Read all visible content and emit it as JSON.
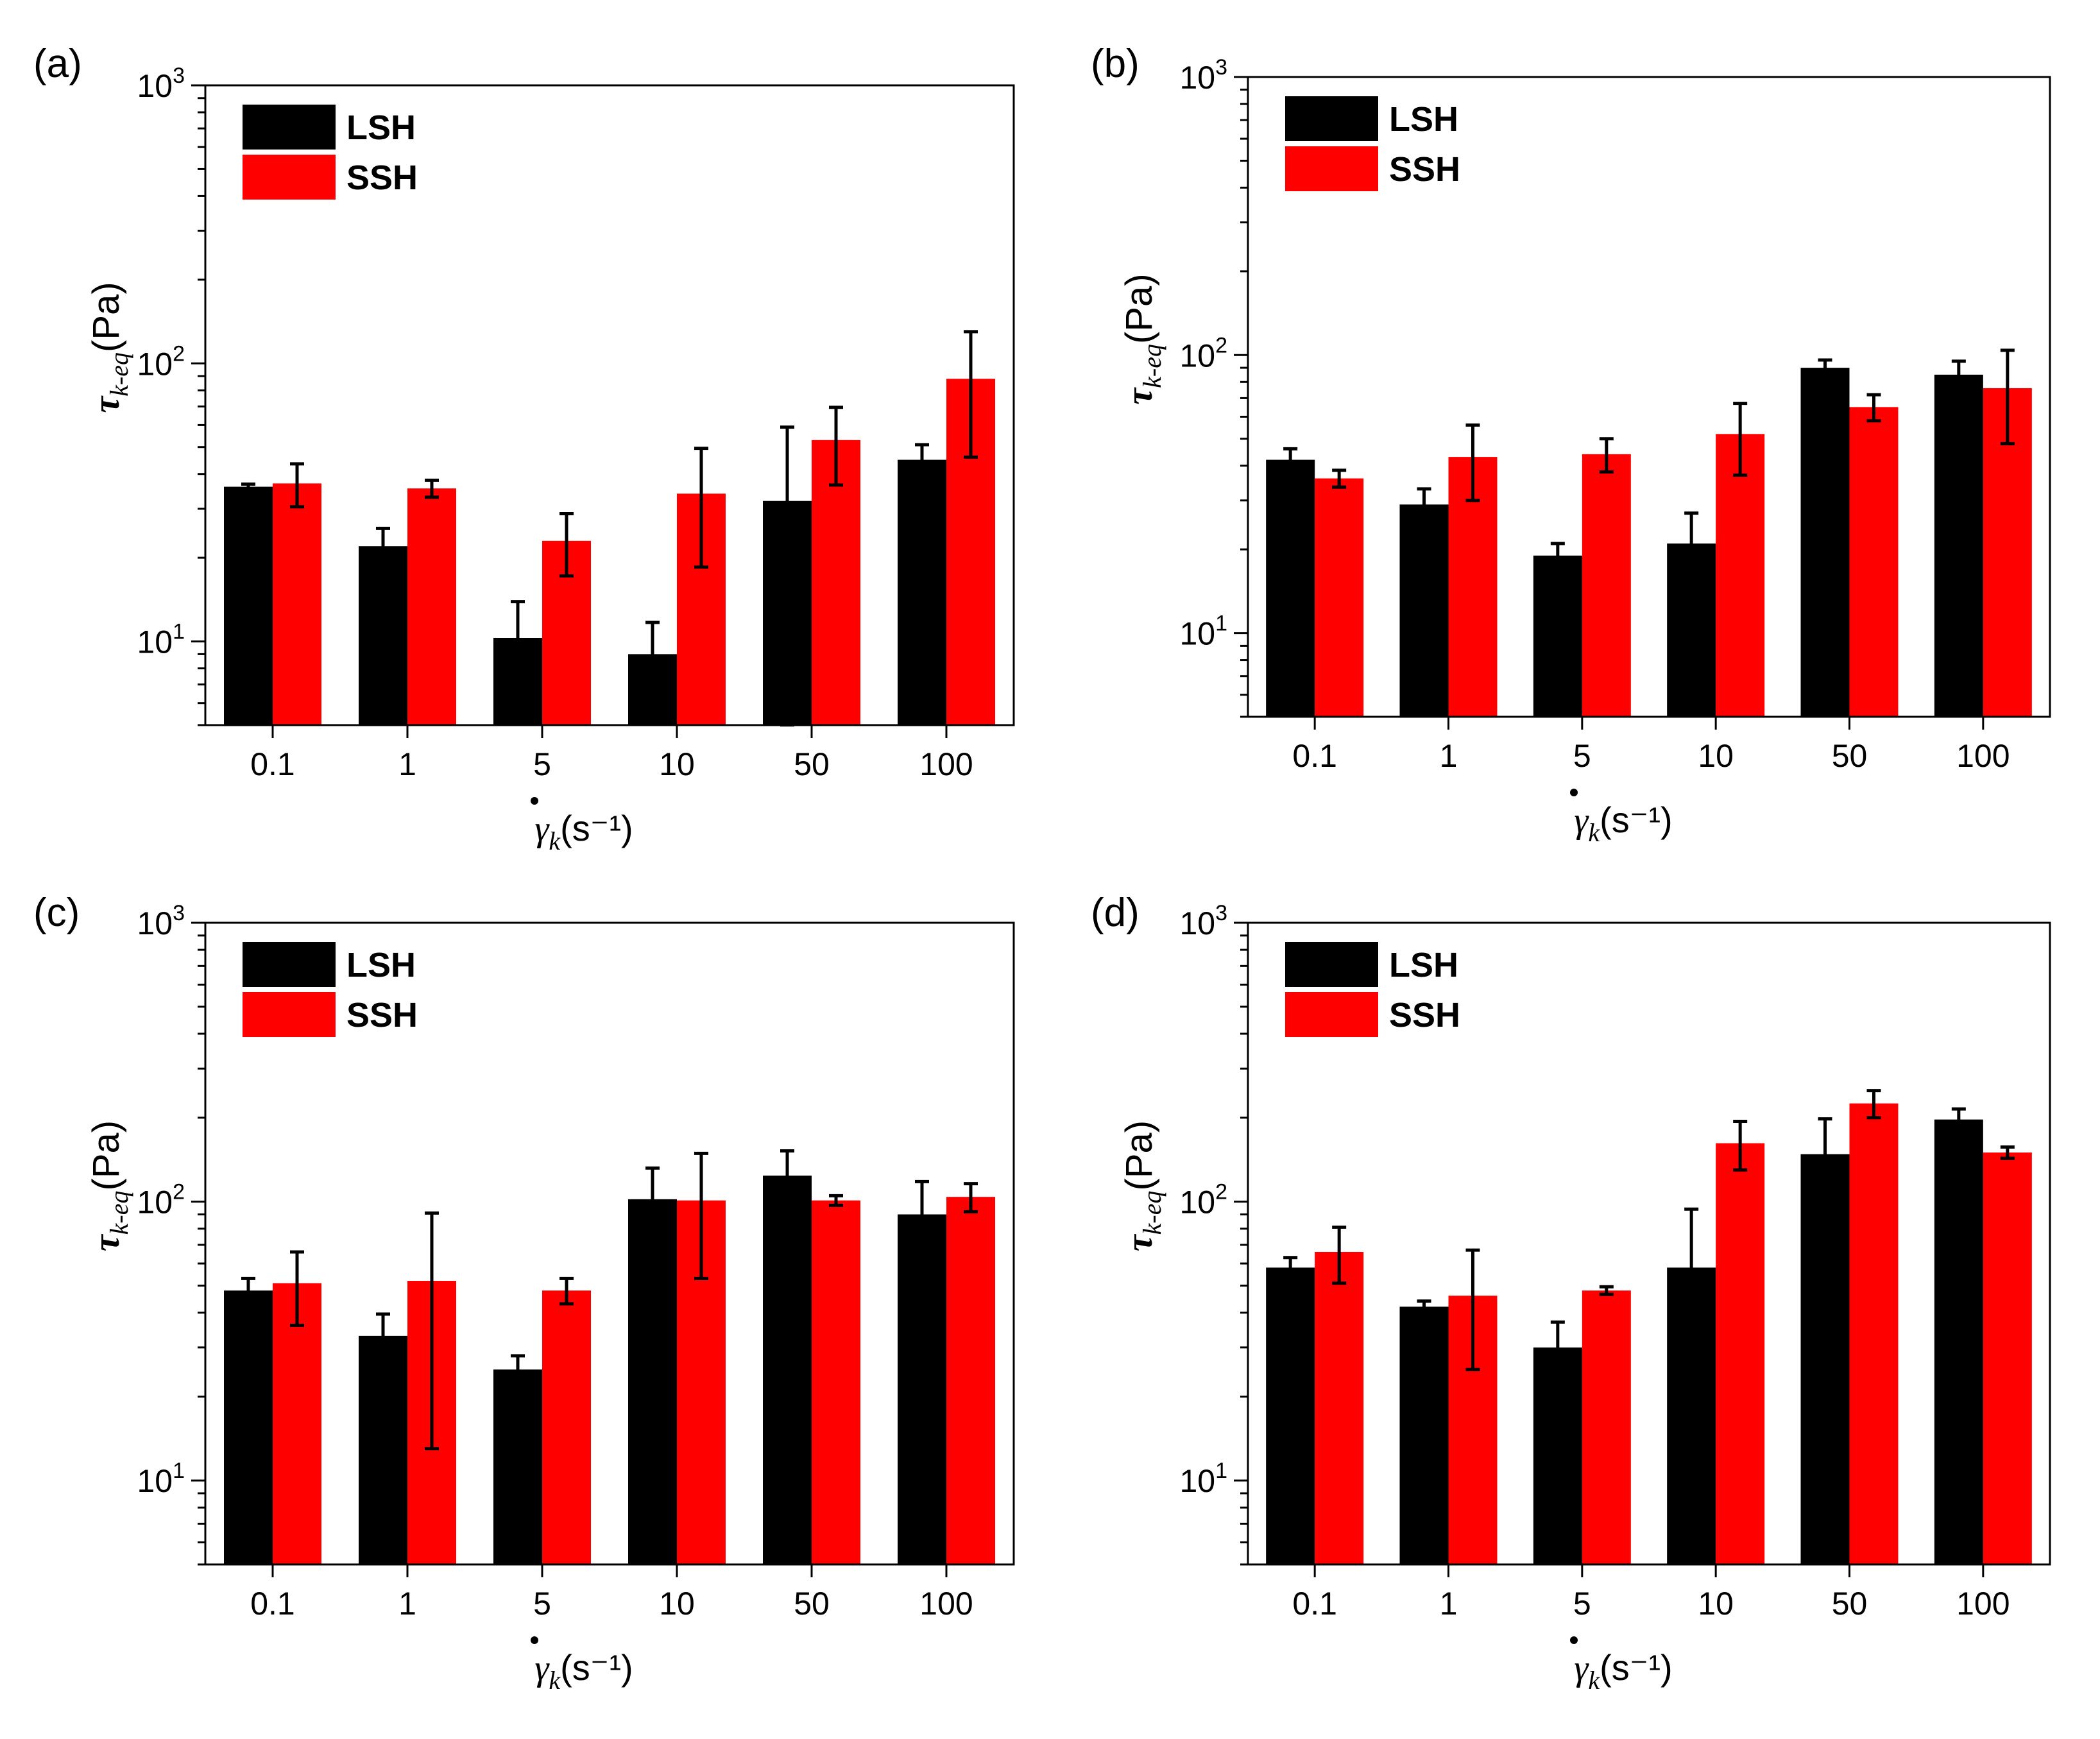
{
  "colors": {
    "lsh": "#000000",
    "ssh": "#ff0000",
    "axis": "#000000"
  },
  "chart_data": [
    {
      "panel": "(a)",
      "type": "bar",
      "scale": "log",
      "categories": [
        "0.1",
        "1",
        "5",
        "10",
        "50",
        "100"
      ],
      "ylim": [
        5,
        1000
      ],
      "yticks": [
        {
          "value": 10,
          "base": "10",
          "exp": "1"
        },
        {
          "value": 100,
          "base": "10",
          "exp": "2"
        },
        {
          "value": 1000,
          "base": "10",
          "exp": "3"
        }
      ],
      "ylabel": {
        "symbol": "τ",
        "sub": "k-eq",
        "unit": "(Pa)"
      },
      "xlabel": {
        "symbol": "γ",
        "sub": "k",
        "unit": "(s⁻¹)"
      },
      "legend": {
        "position": "top-left",
        "items": [
          "LSH",
          "SSH"
        ]
      },
      "series": [
        {
          "name": "LSH",
          "values": [
            36,
            22,
            10.3,
            9,
            32,
            45
          ],
          "err": [
            0.8,
            3.5,
            3.6,
            2.7,
            27,
            6
          ]
        },
        {
          "name": "SSH",
          "values": [
            37,
            35.5,
            23,
            34,
            53,
            88
          ],
          "err": [
            6.5,
            2.5,
            5.8,
            15.5,
            16.5,
            42
          ]
        }
      ]
    },
    {
      "panel": "(b)",
      "type": "bar",
      "scale": "log",
      "categories": [
        "0.1",
        "1",
        "5",
        "10",
        "50",
        "100"
      ],
      "ylim": [
        5,
        1000
      ],
      "yticks": [
        {
          "value": 10,
          "base": "10",
          "exp": "1"
        },
        {
          "value": 100,
          "base": "10",
          "exp": "2"
        },
        {
          "value": 1000,
          "base": "10",
          "exp": "3"
        }
      ],
      "ylabel": {
        "symbol": "τ",
        "sub": "k-eq",
        "unit": "(Pa)"
      },
      "xlabel": {
        "symbol": "γ",
        "sub": "k",
        "unit": "(s⁻¹)"
      },
      "legend": {
        "position": "top-left",
        "items": [
          "LSH",
          "SSH"
        ]
      },
      "series": [
        {
          "name": "LSH",
          "values": [
            42,
            29,
            19,
            21,
            90,
            85
          ],
          "err": [
            4,
            4,
            2,
            6,
            6,
            10
          ]
        },
        {
          "name": "SSH",
          "values": [
            36,
            43,
            44,
            52,
            65,
            76
          ],
          "err": [
            2.5,
            13,
            6,
            15,
            7,
            28
          ]
        }
      ]
    },
    {
      "panel": "(c)",
      "type": "bar",
      "scale": "log",
      "categories": [
        "0.1",
        "1",
        "5",
        "10",
        "50",
        "100"
      ],
      "ylim": [
        5,
        1000
      ],
      "yticks": [
        {
          "value": 10,
          "base": "10",
          "exp": "1"
        },
        {
          "value": 100,
          "base": "10",
          "exp": "2"
        },
        {
          "value": 1000,
          "base": "10",
          "exp": "3"
        }
      ],
      "ylabel": {
        "symbol": "τ",
        "sub": "k-eq",
        "unit": "(Pa)"
      },
      "xlabel": {
        "symbol": "γ",
        "sub": "k",
        "unit": "(s⁻¹)"
      },
      "legend": {
        "position": "top-left",
        "items": [
          "LSH",
          "SSH"
        ]
      },
      "series": [
        {
          "name": "LSH",
          "values": [
            48,
            33,
            25,
            102,
            124,
            90
          ],
          "err": [
            5,
            6.5,
            3,
            30,
            28,
            28
          ]
        },
        {
          "name": "SSH",
          "values": [
            51,
            52,
            48,
            101,
            101,
            104
          ],
          "err": [
            15,
            39,
            5,
            48,
            4,
            12
          ]
        }
      ]
    },
    {
      "panel": "(d)",
      "type": "bar",
      "scale": "log",
      "categories": [
        "0.1",
        "1",
        "5",
        "10",
        "50",
        "100"
      ],
      "ylim": [
        5,
        1000
      ],
      "yticks": [
        {
          "value": 10,
          "base": "10",
          "exp": "1"
        },
        {
          "value": 100,
          "base": "10",
          "exp": "2"
        },
        {
          "value": 1000,
          "base": "10",
          "exp": "3"
        }
      ],
      "ylabel": {
        "symbol": "τ",
        "sub": "k-eq",
        "unit": "(Pa)"
      },
      "xlabel": {
        "symbol": "γ",
        "sub": "k",
        "unit": "(s⁻¹)"
      },
      "legend": {
        "position": "top-left",
        "items": [
          "LSH",
          "SSH"
        ]
      },
      "series": [
        {
          "name": "LSH",
          "values": [
            58,
            42,
            30,
            58,
            148,
            197
          ],
          "err": [
            5,
            2,
            7,
            36,
            50,
            18
          ]
        },
        {
          "name": "SSH",
          "values": [
            66,
            46,
            48,
            162,
            225,
            150
          ],
          "err": [
            15,
            21,
            1.5,
            32,
            25,
            7
          ]
        }
      ]
    }
  ]
}
